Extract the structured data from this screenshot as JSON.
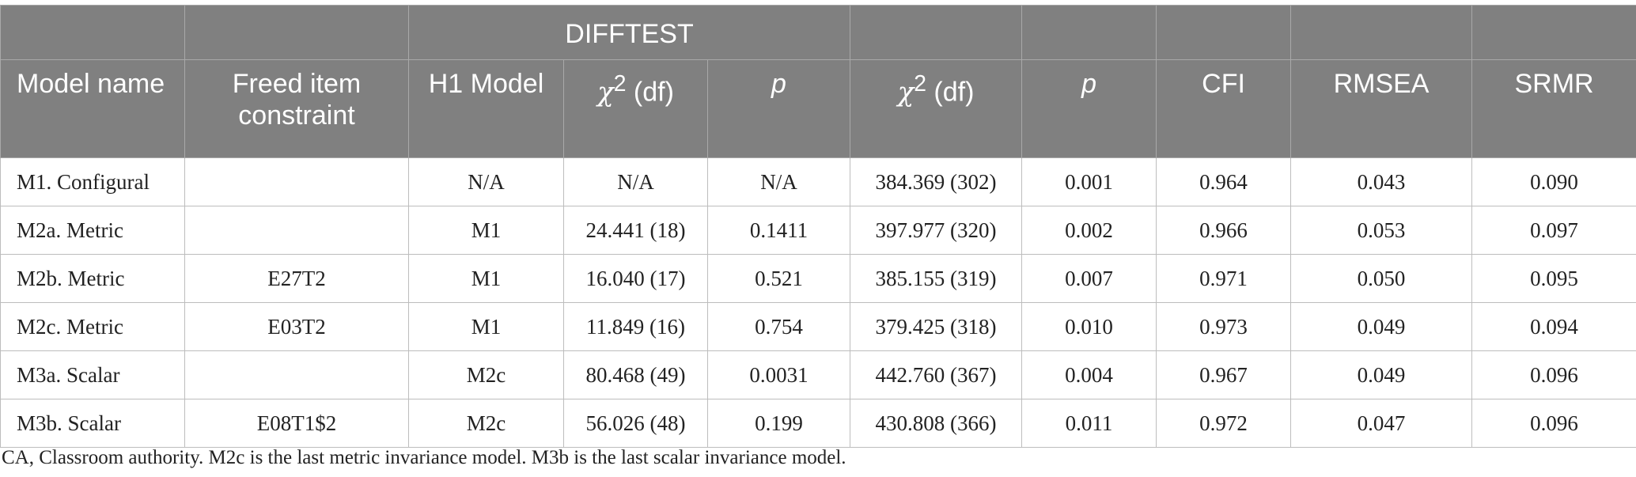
{
  "header": {
    "group_label": "DIFFTEST",
    "columns": {
      "model_name": "Model name",
      "freed_item": "Freed item constraint",
      "h1_model": "H1 Model",
      "chi_symbol": "χ",
      "chi_sup": "2",
      "chi_df": " (df)",
      "p": "p",
      "cfi": "CFI",
      "rmsea": "RMSEA",
      "srmr": "SRMR"
    }
  },
  "rows": [
    {
      "model": "M1. Configural",
      "freed": "",
      "h1": "N/A",
      "dt_chi": "N/A",
      "dt_p": "N/A",
      "chi": "384.369 (302)",
      "p": "0.001",
      "cfi": "0.964",
      "rmsea": "0.043",
      "srmr": "0.090"
    },
    {
      "model": "M2a. Metric",
      "freed": "",
      "h1": "M1",
      "dt_chi": "24.441 (18)",
      "dt_p": "0.1411",
      "chi": "397.977 (320)",
      "p": "0.002",
      "cfi": "0.966",
      "rmsea": "0.053",
      "srmr": "0.097"
    },
    {
      "model": "M2b. Metric",
      "freed": "E27T2",
      "h1": "M1",
      "dt_chi": "16.040 (17)",
      "dt_p": "0.521",
      "chi": "385.155 (319)",
      "p": "0.007",
      "cfi": "0.971",
      "rmsea": "0.050",
      "srmr": "0.095"
    },
    {
      "model": "M2c. Metric",
      "freed": "E03T2",
      "h1": "M1",
      "dt_chi": "11.849 (16)",
      "dt_p": "0.754",
      "chi": "379.425 (318)",
      "p": "0.010",
      "cfi": "0.973",
      "rmsea": "0.049",
      "srmr": "0.094"
    },
    {
      "model": "M3a. Scalar",
      "freed": "",
      "h1": "M2c",
      "dt_chi": "80.468 (49)",
      "dt_p": "0.0031",
      "chi": "442.760 (367)",
      "p": "0.004",
      "cfi": "0.967",
      "rmsea": "0.049",
      "srmr": "0.096"
    },
    {
      "model": "M3b. Scalar",
      "freed": "E08T1$2",
      "h1": "M2c",
      "dt_chi": "56.026 (48)",
      "dt_p": "0.199",
      "chi": "430.808 (366)",
      "p": "0.011",
      "cfi": "0.972",
      "rmsea": "0.047",
      "srmr": "0.096"
    }
  ],
  "footnote": "CA, Classroom authority. M2c is the last metric invariance model. M3b is the last scalar invariance model."
}
